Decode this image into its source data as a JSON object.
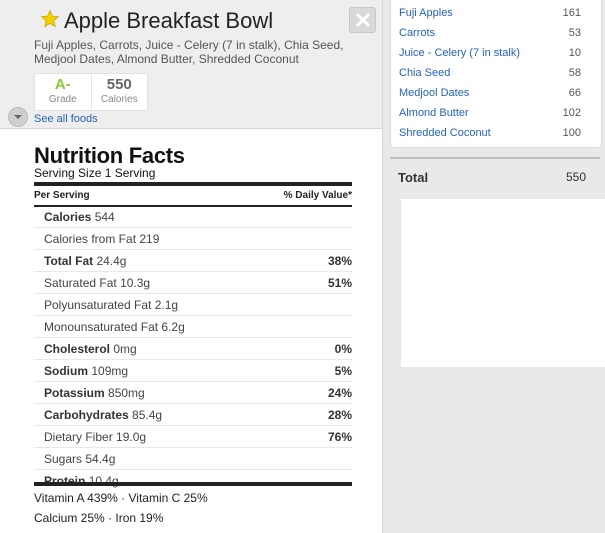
{
  "food": {
    "title": "Apple Breakfast Bowl",
    "ingredients_line1": "Fuji Apples, Carrots, Juice - Celery (7 in stalk), Chia Seed,",
    "ingredients_line2": "Medjool Dates, Almond Butter, Shredded Coconut",
    "grade": "A-",
    "grade_label": "Grade",
    "calories": "550",
    "calories_label": "Calories",
    "see_all": "See all foods",
    "colors": {
      "grade": "#8cc63e",
      "link": "#2563b8",
      "star": "#f5d000"
    },
    "icons": {
      "favorite": "star-icon",
      "close": "close-icon",
      "toggle": "chevron-down-icon"
    }
  },
  "nutrition": {
    "title": "Nutrition Facts",
    "serving": "Serving Size 1 Serving",
    "per_serving": "Per Serving",
    "daily_value": "% Daily Value*",
    "rows": [
      {
        "label": "Calories",
        "value": "544",
        "pct": ""
      },
      {
        "label": "Calories from Fat",
        "value": "219",
        "pct": ""
      },
      {
        "label": "Total Fat",
        "value": "24.4g",
        "pct": "38%"
      },
      {
        "label": "Saturated Fat",
        "value": "10.3g",
        "pct": "51%"
      },
      {
        "label": "Polyunsaturated Fat",
        "value": "2.1g",
        "pct": ""
      },
      {
        "label": "Monounsaturated Fat",
        "value": "6.2g",
        "pct": ""
      },
      {
        "label": "Cholesterol",
        "value": "0mg",
        "pct": "0%"
      },
      {
        "label": "Sodium",
        "value": "109mg",
        "pct": "5%"
      },
      {
        "label": "Potassium",
        "value": "850mg",
        "pct": "24%"
      },
      {
        "label": "Carbohydrates",
        "value": "85.4g",
        "pct": "28%"
      },
      {
        "label": "Dietary Fiber",
        "value": "19.0g",
        "pct": "76%"
      },
      {
        "label": "Sugars",
        "value": "54.4g",
        "pct": ""
      },
      {
        "label": "Protein",
        "value": "10.4g",
        "pct": ""
      }
    ],
    "vitamins_line1": "Vitamin A 439% · Vitamin C 25%",
    "vitamins_line2": "Calcium 25% · Iron 19%"
  },
  "ingredients": {
    "items": [
      {
        "name": "Fuji Apples",
        "value": "161"
      },
      {
        "name": "Carrots",
        "value": "53"
      },
      {
        "name": "Juice - Celery (7 in stalk)",
        "value": "10"
      },
      {
        "name": "Chia Seed",
        "value": "58"
      },
      {
        "name": "Medjool Dates",
        "value": "66"
      },
      {
        "name": "Almond Butter",
        "value": "102"
      },
      {
        "name": "Shredded Coconut",
        "value": "100"
      }
    ],
    "total_label": "Total",
    "total_value": "550"
  }
}
